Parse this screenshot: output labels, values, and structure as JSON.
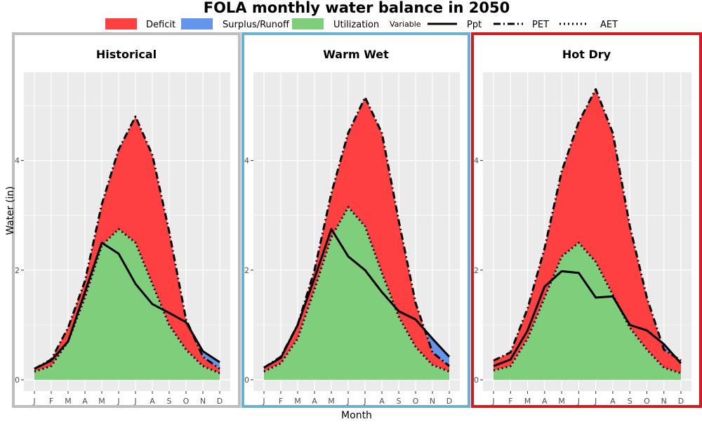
{
  "title": "FOLA monthly water balance in 2050",
  "legend": {
    "fill_items": [
      {
        "label": "Deficit",
        "color": "#ff4040"
      },
      {
        "label": "Surplus/Runoff",
        "color": "#6495ed"
      },
      {
        "label": "Utilization",
        "color": "#7fce7c"
      }
    ],
    "variable_title": "Variable",
    "line_items": [
      {
        "label": "Ppt",
        "dash": "solid"
      },
      {
        "label": "PET",
        "dash": "dashdot"
      },
      {
        "label": "AET",
        "dash": "dotted"
      }
    ]
  },
  "colors": {
    "deficit": "#ff4040",
    "surplus": "#6495ed",
    "utilization": "#7fce7c",
    "panel_bg": "#ebebeb",
    "grid": "#ffffff",
    "line": "#000000"
  },
  "chart_data": {
    "type": "area",
    "xlabel": "Month",
    "ylabel": "Water (in)",
    "ylim": [
      0,
      5.3
    ],
    "yticks": [
      0,
      2,
      4
    ],
    "categories": [
      "J",
      "F",
      "M",
      "A",
      "M",
      "J",
      "J",
      "A",
      "S",
      "O",
      "N",
      "D"
    ],
    "grid": true,
    "legend_position": "top",
    "panels": [
      {
        "title": "Historical",
        "border_color": "#bebebe",
        "series": [
          {
            "name": "Ppt",
            "values": [
              0.2,
              0.35,
              0.7,
              1.6,
              2.5,
              2.3,
              1.75,
              1.38,
              1.22,
              1.05,
              0.52,
              0.32
            ]
          },
          {
            "name": "PET",
            "values": [
              0.2,
              0.37,
              0.95,
              1.8,
              3.2,
              4.2,
              4.8,
              4.1,
              2.7,
              1.1,
              0.42,
              0.2
            ]
          },
          {
            "name": "AET",
            "values": [
              0.15,
              0.25,
              0.7,
              1.5,
              2.45,
              2.75,
              2.5,
              1.75,
              1.0,
              0.55,
              0.25,
              0.12
            ]
          }
        ]
      },
      {
        "title": "Warm Wet",
        "border_color": "#6baed6",
        "series": [
          {
            "name": "Ppt",
            "values": [
              0.22,
              0.4,
              1.0,
              1.85,
              2.75,
              2.25,
              2.0,
              1.6,
              1.25,
              1.1,
              0.75,
              0.42
            ]
          },
          {
            "name": "PET",
            "values": [
              0.22,
              0.42,
              1.0,
              2.0,
              3.4,
              4.5,
              5.15,
              4.5,
              2.9,
              1.4,
              0.5,
              0.25
            ]
          },
          {
            "name": "AET",
            "values": [
              0.15,
              0.3,
              0.75,
              1.65,
              2.6,
              3.15,
              2.8,
              1.95,
              1.15,
              0.6,
              0.27,
              0.15
            ]
          }
        ]
      },
      {
        "title": "Hot Dry",
        "border_color": "#d7191c",
        "series": [
          {
            "name": "Ppt",
            "values": [
              0.25,
              0.37,
              0.9,
              1.7,
              1.98,
              1.95,
              1.5,
              1.52,
              1.0,
              0.9,
              0.65,
              0.3
            ]
          },
          {
            "name": "PET",
            "values": [
              0.35,
              0.5,
              1.3,
              2.4,
              3.8,
              4.7,
              5.3,
              4.5,
              2.8,
              1.5,
              0.55,
              0.35
            ]
          },
          {
            "name": "AET",
            "values": [
              0.17,
              0.25,
              0.75,
              1.5,
              2.25,
              2.5,
              2.15,
              1.55,
              0.95,
              0.55,
              0.22,
              0.12
            ]
          }
        ]
      }
    ]
  }
}
